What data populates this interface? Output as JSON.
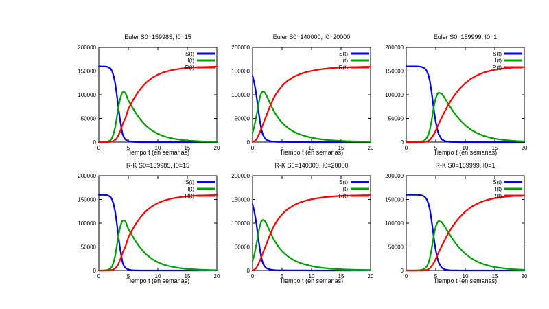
{
  "chart_data": {
    "type": "line",
    "shared": {
      "xlabel": "Tiempo t (en semanas)",
      "x_ticks": [
        0,
        5,
        10,
        15,
        20
      ],
      "y_ticks": [
        0,
        50000,
        100000,
        150000,
        200000
      ],
      "xlim": [
        0,
        20
      ],
      "ylim": [
        0,
        200000
      ],
      "grid": false,
      "legend_position": "top-right-inside",
      "legend": [
        "S(t)",
        "I(t)",
        "R(t)"
      ],
      "series_keys": [
        "S",
        "I",
        "R"
      ],
      "colors": {
        "S": "#0000ff",
        "I": "#00a000",
        "R": "#ff0000"
      }
    },
    "datasets": {
      "A": {
        "t": [
          0,
          0.5,
          1,
          1.5,
          2,
          2.25,
          2.5,
          2.75,
          3,
          3.25,
          3.5,
          3.75,
          4,
          4.25,
          4.5,
          5,
          5.5,
          6,
          6.5,
          7,
          7.5,
          8,
          9,
          10,
          11,
          12,
          13,
          14,
          15,
          16,
          17,
          18,
          19,
          20
        ],
        "S": [
          159985,
          159920,
          159700,
          158800,
          155000,
          149500,
          140000,
          125000,
          104000,
          79000,
          55000,
          35000,
          18000,
          10000,
          5500,
          2000,
          700,
          250,
          100,
          50,
          30,
          20,
          10,
          5,
          3,
          2,
          1,
          1,
          0,
          0,
          0,
          0,
          0,
          0
        ],
        "I": [
          15,
          60,
          250,
          1050,
          4400,
          9300,
          17500,
          30500,
          48500,
          68500,
          85500,
          98000,
          105000,
          106000,
          104000,
          88000,
          77000,
          66500,
          57000,
          48500,
          41000,
          34500,
          24500,
          17500,
          12500,
          9000,
          6500,
          4700,
          3400,
          2500,
          1800,
          1300,
          900,
          700
        ],
        "R": [
          0,
          20,
          50,
          150,
          600,
          1200,
          2500,
          4500,
          7500,
          12500,
          19500,
          27000,
          37000,
          44000,
          50500,
          70000,
          82300,
          93250,
          102900,
          111450,
          118970,
          125480,
          135490,
          142495,
          147497,
          150998,
          153499,
          155299,
          156600,
          157500,
          158200,
          158700,
          159100,
          159300
        ]
      },
      "B": {
        "t": [
          0,
          0.25,
          0.5,
          0.75,
          1,
          1.25,
          1.5,
          1.75,
          2,
          2.25,
          2.5,
          3,
          3.5,
          4,
          4.5,
          5,
          5.5,
          6,
          7,
          8,
          9,
          10,
          11,
          12,
          13,
          14,
          15,
          16,
          17,
          18,
          19,
          20
        ],
        "S": [
          140000,
          128000,
          111000,
          90000,
          66000,
          44000,
          27000,
          16000,
          9500,
          6000,
          4000,
          2000,
          1000,
          600,
          400,
          300,
          250,
          200,
          150,
          100,
          80,
          60,
          50,
          40,
          35,
          30,
          25,
          20,
          18,
          15,
          12,
          10
        ],
        "I": [
          20000,
          30500,
          45500,
          62000,
          80000,
          95000,
          104000,
          107000,
          105500,
          101000,
          95000,
          81000,
          68000,
          57500,
          48600,
          41200,
          35000,
          29800,
          21850,
          16400,
          12420,
          9440,
          7150,
          5460,
          4165,
          3170,
          2475,
          1980,
          1582,
          1285,
          1038,
          840
        ],
        "R": [
          0,
          1500,
          3500,
          8000,
          14000,
          21000,
          29000,
          37000,
          45000,
          53000,
          61000,
          77000,
          91000,
          101900,
          111000,
          118500,
          124750,
          130000,
          138000,
          143500,
          147500,
          150500,
          152800,
          154500,
          155800,
          156800,
          157500,
          158000,
          158400,
          158700,
          158950,
          159150
        ]
      },
      "C": {
        "t": [
          0,
          1,
          1.5,
          2,
          2.5,
          3,
          3.25,
          3.5,
          3.75,
          4,
          4.25,
          4.5,
          4.75,
          5,
          5.25,
          5.5,
          6,
          6.5,
          7,
          7.5,
          8,
          8.5,
          9,
          10,
          11,
          12,
          13,
          14,
          15,
          16,
          17,
          18,
          19,
          20
        ],
        "S": [
          159999,
          159985,
          159940,
          159750,
          159100,
          156800,
          154000,
          149500,
          141500,
          128500,
          109500,
          86000,
          62500,
          42500,
          27000,
          16500,
          6000,
          2200,
          800,
          300,
          150,
          80,
          40,
          15,
          8,
          5,
          3,
          2,
          1,
          1,
          0,
          0,
          0,
          0
        ],
        "I": [
          1,
          15,
          55,
          230,
          850,
          2900,
          5300,
          9300,
          16000,
          26500,
          42000,
          61000,
          79500,
          93000,
          101000,
          104500,
          102500,
          93500,
          83200,
          73200,
          63850,
          55420,
          47960,
          35485,
          25992,
          18995,
          13797,
          9998,
          7299,
          5299,
          3900,
          2800,
          2000,
          1500
        ],
        "R": [
          0,
          0,
          5,
          20,
          50,
          300,
          700,
          1200,
          2500,
          5000,
          8500,
          13000,
          18000,
          24500,
          32000,
          39000,
          51500,
          64300,
          76000,
          86500,
          96000,
          104500,
          112000,
          124500,
          134000,
          141000,
          146200,
          150000,
          152700,
          154700,
          156100,
          157200,
          158000,
          158500
        ]
      }
    },
    "charts": [
      {
        "title": "Euler S0=159985, I0=15",
        "dataset": "A"
      },
      {
        "title": "Euler S0=140000, I0=20000",
        "dataset": "B"
      },
      {
        "title": "Euler S0=159999, I0=1",
        "dataset": "C"
      },
      {
        "title": "R-K S0=159985, I0=15",
        "dataset": "A"
      },
      {
        "title": "R-K S0=140000, I0=20000",
        "dataset": "B"
      },
      {
        "title": "R-K S0=159999, I0=1",
        "dataset": "C"
      }
    ]
  }
}
